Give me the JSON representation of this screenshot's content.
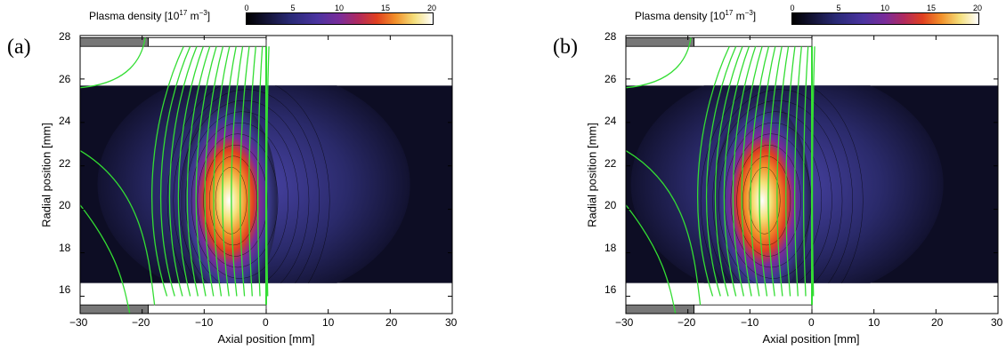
{
  "chart_data": [
    {
      "type": "heatmap",
      "panel_label": "(a)",
      "colorbar": {
        "title_main": "Plasma density [10",
        "title_exp": "17",
        "title_unit": " m",
        "title_unit_exp": "−3",
        "title_close": "]",
        "ticks": [
          "0",
          "5",
          "10",
          "15",
          "20"
        ],
        "range": [
          0,
          20
        ],
        "colors": [
          "#000000",
          "#2a2a78",
          "#7a2c9a",
          "#e04020",
          "#f2902a",
          "#ffffff"
        ]
      },
      "xlabel": "Axial position [mm]",
      "ylabel": "Radial position [mm]",
      "xlim": [
        -30,
        30
      ],
      "ylim": [
        15.2,
        28
      ],
      "x_ticks": [
        "−30",
        "−20",
        "−10",
        "0",
        "10",
        "20",
        "30"
      ],
      "y_ticks": [
        "16",
        "18",
        "20",
        "22",
        "24",
        "26",
        "28"
      ],
      "plasma_region": {
        "r_min": 16.6,
        "r_max": 25.7
      },
      "peak": {
        "x": -6,
        "r": 19.8,
        "density": 19
      },
      "field_line_color": "#33dd33"
    },
    {
      "type": "heatmap",
      "panel_label": "(b)",
      "colorbar": {
        "title_main": "Plasma density [10",
        "title_exp": "17",
        "title_unit": " m",
        "title_unit_exp": "−3",
        "title_close": "]",
        "ticks": [
          "0",
          "5",
          "10",
          "15",
          "20"
        ],
        "range": [
          0,
          20
        ],
        "colors": [
          "#000000",
          "#2a2a78",
          "#7a2c9a",
          "#e04020",
          "#f2902a",
          "#ffffff"
        ]
      },
      "xlabel": "Axial position [mm]",
      "ylabel": "Radial position [mm]",
      "xlim": [
        -30,
        30
      ],
      "ylim": [
        15.2,
        28
      ],
      "x_ticks": [
        "−30",
        "−20",
        "−10",
        "0",
        "10",
        "20",
        "30"
      ],
      "y_ticks": [
        "16",
        "18",
        "20",
        "22",
        "24",
        "26",
        "28"
      ],
      "plasma_region": {
        "r_min": 16.6,
        "r_max": 25.7
      },
      "peak": {
        "x": -8,
        "r": 19.8,
        "density": 20
      },
      "field_line_color": "#33dd33"
    }
  ]
}
